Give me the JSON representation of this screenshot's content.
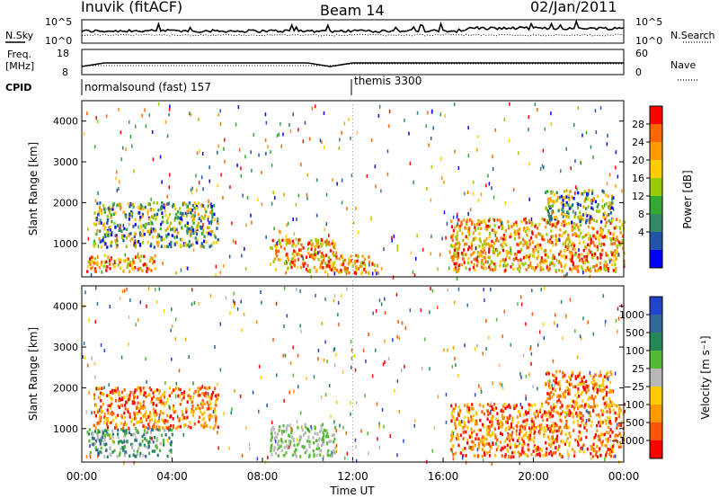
{
  "header": {
    "station": "Inuvik (fitACF)",
    "beam": "Beam 14",
    "date": "02/Jan/2011"
  },
  "top_panels": {
    "nsky_label": "N.Sky",
    "nsky_ticks": [
      "10^5",
      "10^0"
    ],
    "nsearch_label": "N.Search",
    "nsearch_ticks": [
      "10^5",
      "10^0"
    ],
    "freq_label": "Freq.",
    "freq_unit": "[MHz]",
    "freq_ticks": [
      "18",
      "8"
    ],
    "nave_label": "Nave",
    "nave_ticks": [
      "60",
      "0"
    ],
    "cpid_label": "CPID",
    "cpid_modes": [
      {
        "name": "normalsound (fast) 157",
        "start_hour": 0
      },
      {
        "name": "themis 3300",
        "start_hour": 12
      }
    ]
  },
  "power_colorbar": {
    "label": "Power [dB]",
    "ticks": [
      "28",
      "24",
      "20",
      "16",
      "12",
      "8",
      "4"
    ],
    "colors": [
      "#ff0000",
      "#ff6600",
      "#ff9900",
      "#ffcc00",
      "#99cc00",
      "#33aa33",
      "#338866",
      "#2255aa",
      "#0000ff"
    ]
  },
  "velocity_colorbar": {
    "label": "Velocity [m s⁻¹]",
    "ticks": [
      "1000",
      "500",
      "100",
      "25",
      "−25",
      "−100",
      "−500",
      "−1000"
    ],
    "colors": [
      "#2244cc",
      "#336699",
      "#228855",
      "#55bb33",
      "#b8b8b8",
      "#ffcc00",
      "#ff9900",
      "#ff5500",
      "#ff0000"
    ]
  },
  "chart_data": [
    {
      "type": "heatmap",
      "title": "Power",
      "ylabel": "Slant Range [km]",
      "xlabel": "Time UT",
      "x_ticks": [
        "00:00",
        "04:00",
        "08:00",
        "12:00",
        "16:00",
        "20:00",
        "00:00"
      ],
      "y_ticks": [
        "1000",
        "2000",
        "3000",
        "4000"
      ],
      "xlim_hours": [
        0,
        24
      ],
      "ylim_km": [
        180,
        4500
      ],
      "regions": [
        {
          "t0": 0.2,
          "t1": 3.3,
          "r0": 300,
          "r1": 700,
          "value": "22-28 dB"
        },
        {
          "t0": 0.5,
          "t1": 6.0,
          "r0": 900,
          "r1": 2000,
          "value": "8-24 dB"
        },
        {
          "t0": 8.3,
          "t1": 11.2,
          "r0": 300,
          "r1": 1100,
          "value": "12-28 dB"
        },
        {
          "t0": 10.5,
          "t1": 13.0,
          "r0": 250,
          "r1": 700,
          "value": "16-28 dB"
        },
        {
          "t0": 16.3,
          "t1": 24.0,
          "r0": 300,
          "r1": 1600,
          "value": "12-28 dB"
        },
        {
          "t0": 20.5,
          "t1": 23.5,
          "r0": 1500,
          "r1": 2300,
          "value": "12-20 dB"
        }
      ]
    },
    {
      "type": "heatmap",
      "title": "Velocity",
      "ylabel": "Slant Range [km]",
      "xlabel": "Time UT",
      "x_ticks": [
        "00:00",
        "04:00",
        "08:00",
        "12:00",
        "16:00",
        "20:00",
        "00:00"
      ],
      "y_ticks": [
        "1000",
        "2000",
        "3000",
        "4000"
      ],
      "xlim_hours": [
        0,
        24
      ],
      "ylim_km": [
        180,
        4500
      ],
      "regions": [
        {
          "t0": 0.2,
          "t1": 4.0,
          "r0": 300,
          "r1": 1000,
          "value": "-25 to 500 m/s"
        },
        {
          "t0": 0.5,
          "t1": 6.0,
          "r0": 1000,
          "r1": 2000,
          "value": "-100 to -500 m/s"
        },
        {
          "t0": 8.3,
          "t1": 11.2,
          "r0": 300,
          "r1": 1100,
          "value": "-25 to 100 m/s"
        },
        {
          "t0": 16.3,
          "t1": 24.0,
          "r0": 300,
          "r1": 1600,
          "value": "-100 to -500 m/s"
        },
        {
          "t0": 20.5,
          "t1": 23.5,
          "r0": 1500,
          "r1": 2400,
          "value": "-500 to -1000 m/s"
        }
      ]
    }
  ]
}
